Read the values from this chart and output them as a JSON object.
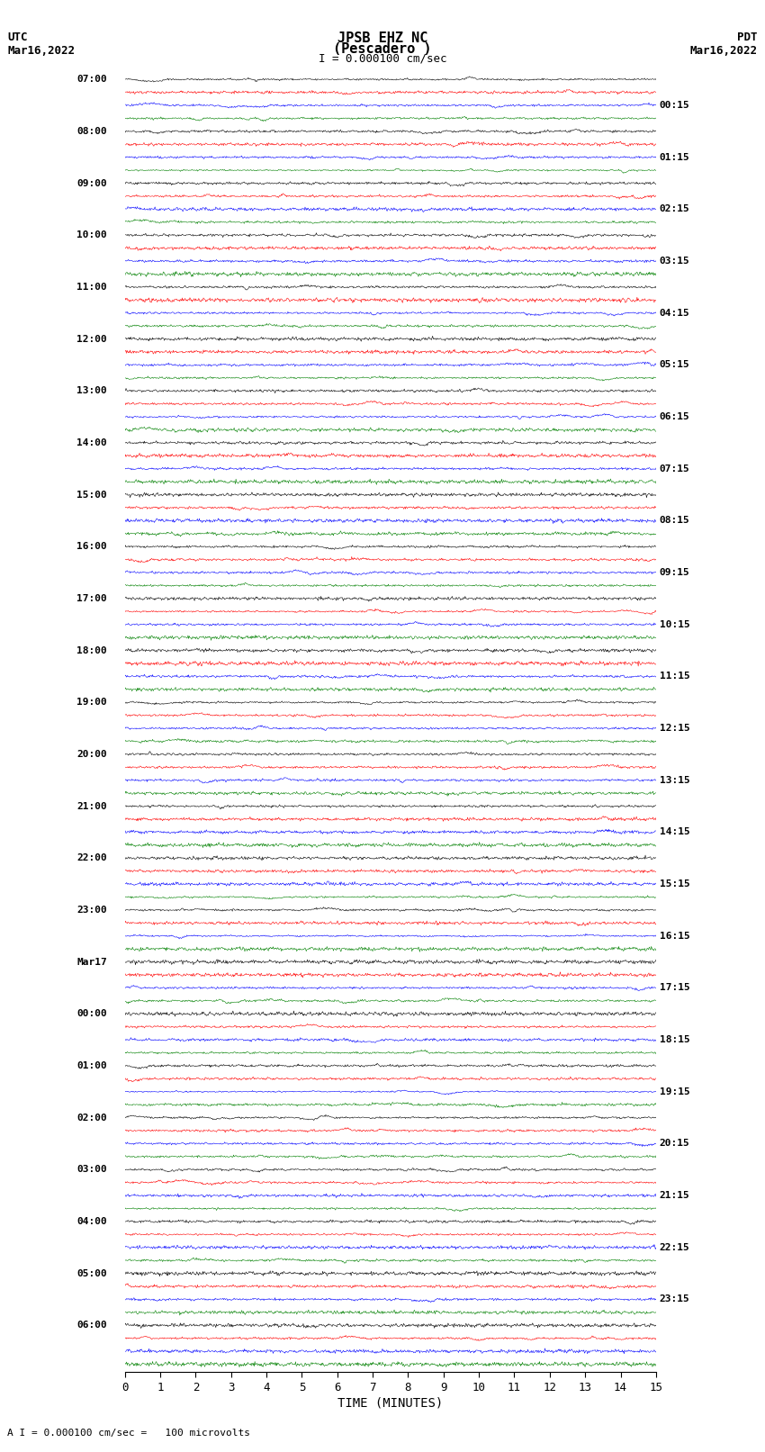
{
  "title_line1": "JPSB EHZ NC",
  "title_line2": "(Pescadero )",
  "scale_label": "I = 0.000100 cm/sec",
  "left_header": "UTC\nMar16,2022",
  "right_header": "PDT\nMar16,2022",
  "bottom_label": "TIME (MINUTES)",
  "bottom_note": "A I = 0.000100 cm/sec =   100 microvolts",
  "left_times_utc": [
    "07:00",
    "08:00",
    "09:00",
    "10:00",
    "11:00",
    "12:00",
    "13:00",
    "14:00",
    "15:00",
    "16:00",
    "17:00",
    "18:00",
    "19:00",
    "20:00",
    "21:00",
    "22:00",
    "23:00",
    "Mar17",
    "00:00",
    "01:00",
    "02:00",
    "03:00",
    "04:00",
    "05:00",
    "06:00"
  ],
  "right_times_pdt": [
    "00:15",
    "01:15",
    "02:15",
    "03:15",
    "04:15",
    "05:15",
    "06:15",
    "07:15",
    "08:15",
    "09:15",
    "10:15",
    "11:15",
    "12:15",
    "13:15",
    "14:15",
    "15:15",
    "16:15",
    "17:15",
    "18:15",
    "19:15",
    "20:15",
    "21:15",
    "22:15",
    "23:15"
  ],
  "n_traces": 100,
  "n_minutes": 15,
  "samples_per_trace": 900,
  "colors_cycle": [
    "black",
    "red",
    "blue",
    "green"
  ],
  "fig_width": 8.5,
  "fig_height": 16.13,
  "bg_color": "white",
  "trace_amplitude": 0.45,
  "x_ticks": [
    0,
    1,
    2,
    3,
    4,
    5,
    6,
    7,
    8,
    9,
    10,
    11,
    12,
    13,
    14,
    15
  ],
  "seed": 42
}
